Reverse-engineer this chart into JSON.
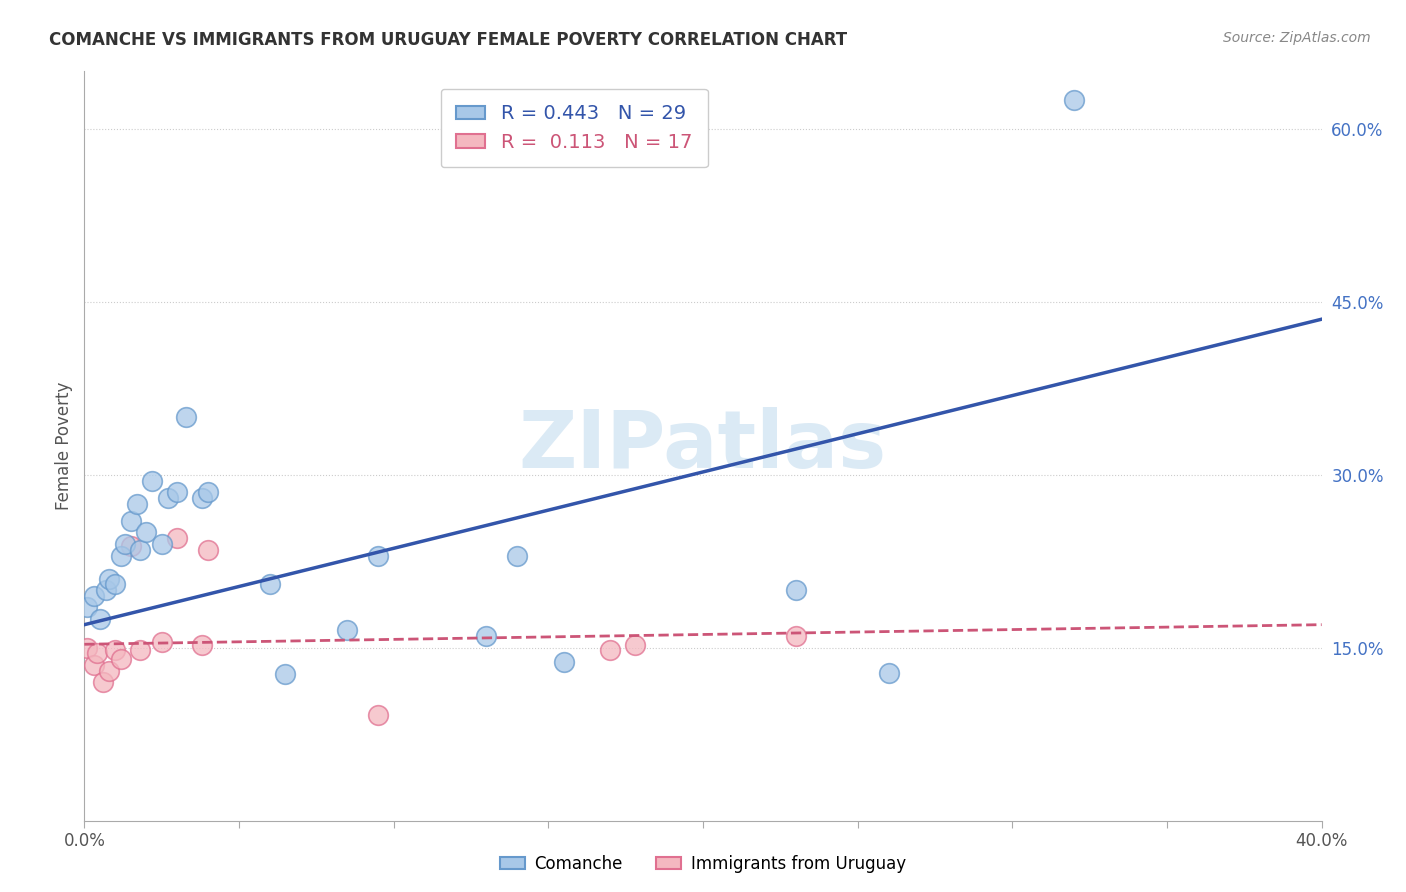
{
  "title": "COMANCHE VS IMMIGRANTS FROM URUGUAY FEMALE POVERTY CORRELATION CHART",
  "source": "Source: ZipAtlas.com",
  "ylabel": "Female Poverty",
  "x_min": 0.0,
  "x_max": 0.4,
  "y_min": 0.0,
  "y_max": 0.65,
  "x_ticks": [
    0.0,
    0.05,
    0.1,
    0.15,
    0.2,
    0.25,
    0.3,
    0.35,
    0.4
  ],
  "x_tick_labels": [
    "0.0%",
    "",
    "",
    "",
    "",
    "",
    "",
    "",
    "40.0%"
  ],
  "y_ticks_right": [
    0.15,
    0.3,
    0.45,
    0.6
  ],
  "y_tick_labels_right": [
    "15.0%",
    "30.0%",
    "45.0%",
    "60.0%"
  ],
  "legend_labels": [
    "Comanche",
    "Immigrants from Uruguay"
  ],
  "legend_R": [
    0.443,
    0.113
  ],
  "legend_N": [
    29,
    17
  ],
  "comanche_color": "#a8c8e8",
  "uruguay_color": "#f4b8c0",
  "comanche_edge_color": "#6699cc",
  "uruguay_edge_color": "#e07090",
  "comanche_line_color": "#3355aa",
  "uruguay_line_color": "#cc5577",
  "background_color": "#ffffff",
  "watermark_text": "ZIPatlas",
  "comanche_x": [
    0.001,
    0.003,
    0.005,
    0.007,
    0.008,
    0.01,
    0.012,
    0.013,
    0.015,
    0.017,
    0.018,
    0.02,
    0.022,
    0.025,
    0.027,
    0.03,
    0.033,
    0.038,
    0.04,
    0.06,
    0.065,
    0.085,
    0.095,
    0.13,
    0.14,
    0.155,
    0.23,
    0.26,
    0.32
  ],
  "comanche_y": [
    0.185,
    0.195,
    0.175,
    0.2,
    0.21,
    0.205,
    0.23,
    0.24,
    0.26,
    0.275,
    0.235,
    0.25,
    0.295,
    0.24,
    0.28,
    0.285,
    0.35,
    0.28,
    0.285,
    0.205,
    0.127,
    0.165,
    0.23,
    0.16,
    0.23,
    0.138,
    0.2,
    0.128,
    0.625
  ],
  "uruguay_x": [
    0.001,
    0.003,
    0.004,
    0.006,
    0.008,
    0.01,
    0.012,
    0.015,
    0.018,
    0.025,
    0.03,
    0.038,
    0.04,
    0.095,
    0.17,
    0.178,
    0.23
  ],
  "uruguay_y": [
    0.15,
    0.135,
    0.145,
    0.12,
    0.13,
    0.148,
    0.14,
    0.238,
    0.148,
    0.155,
    0.245,
    0.152,
    0.235,
    0.092,
    0.148,
    0.152,
    0.16
  ],
  "blue_line_x0": 0.0,
  "blue_line_y0": 0.17,
  "blue_line_x1": 0.4,
  "blue_line_y1": 0.435,
  "pink_line_x0": 0.0,
  "pink_line_y0": 0.153,
  "pink_line_x1": 0.4,
  "pink_line_y1": 0.17
}
